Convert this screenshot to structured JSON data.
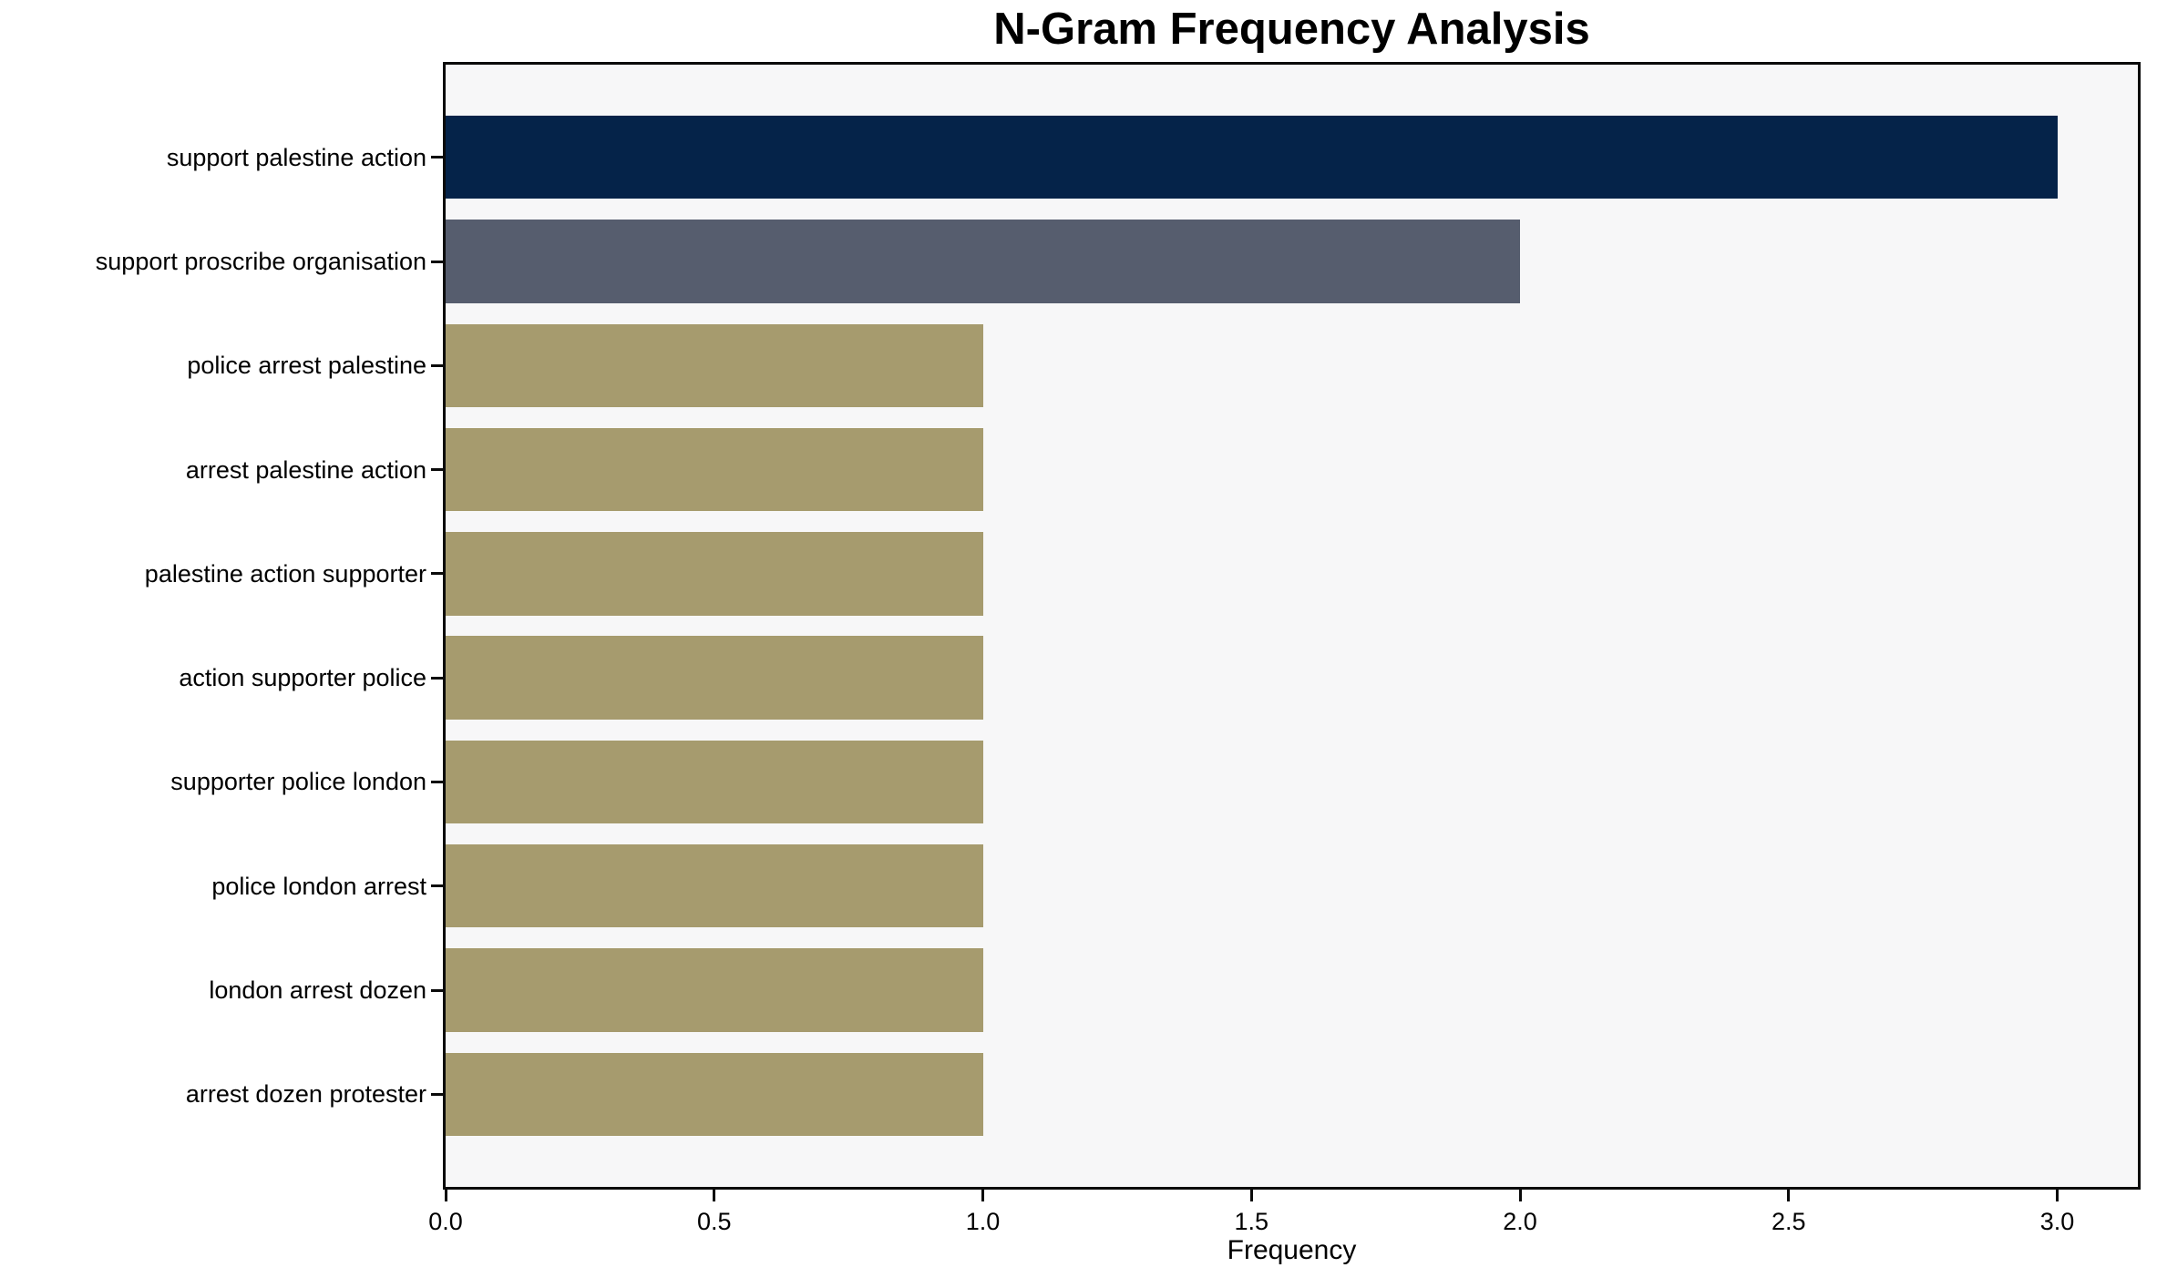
{
  "chart_data": {
    "type": "bar",
    "orientation": "horizontal",
    "title": "N-Gram Frequency Analysis",
    "xlabel": "Frequency",
    "ylabel": "",
    "categories": [
      "support palestine action",
      "support proscribe organisation",
      "police arrest palestine",
      "arrest palestine action",
      "palestine action supporter",
      "action supporter police",
      "supporter police london",
      "police london arrest",
      "london arrest dozen",
      "arrest dozen protester"
    ],
    "values": [
      3,
      2,
      1,
      1,
      1,
      1,
      1,
      1,
      1,
      1
    ],
    "xticks": [
      0.0,
      0.5,
      1.0,
      1.5,
      2.0,
      2.5,
      3.0
    ],
    "xlim": [
      0,
      3.15
    ],
    "bar_colors": [
      "#052349",
      "#565d6e",
      "#a69b6e",
      "#a69b6e",
      "#a69b6e",
      "#a69b6e",
      "#a69b6e",
      "#a69b6e",
      "#a69b6e",
      "#a69b6e"
    ],
    "plot_background": "#f7f7f8",
    "figure_background": "#ffffff",
    "spine_color": "#0a0a0a",
    "grid": false,
    "legend_position": "none"
  }
}
